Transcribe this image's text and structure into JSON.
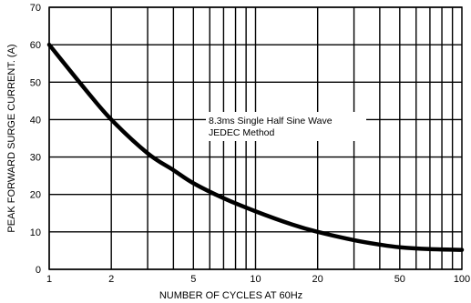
{
  "chart_data": {
    "type": "line",
    "title": "",
    "xlabel": "NUMBER OF CYCLES AT 60Hz",
    "ylabel": "PEAK FORWARD SURGE CURRENT. (A)",
    "x_scale": "log",
    "xlim": [
      1,
      100
    ],
    "ylim": [
      0,
      70
    ],
    "x_ticks": [
      1,
      2,
      5,
      10,
      20,
      50,
      100
    ],
    "x_tick_labels": [
      "1",
      "2",
      "5",
      "10",
      "20",
      "50",
      "100"
    ],
    "y_ticks": [
      0,
      10,
      20,
      30,
      40,
      50,
      60,
      70
    ],
    "y_tick_labels": [
      "0",
      "10",
      "20",
      "30",
      "40",
      "50",
      "60",
      "70"
    ],
    "grid": true,
    "series": [
      {
        "x": [
          1,
          1.5,
          2,
          3,
          4,
          5,
          7,
          10,
          15,
          20,
          30,
          40,
          50,
          70,
          100
        ],
        "y": [
          60,
          48,
          40,
          31,
          26.5,
          23,
          19,
          15.5,
          12,
          10,
          7.8,
          6.6,
          5.9,
          5.4,
          5.2
        ]
      }
    ],
    "annotation": {
      "lines": [
        "8.3ms Single Half Sine Wave",
        "JEDEC Method"
      ]
    }
  }
}
